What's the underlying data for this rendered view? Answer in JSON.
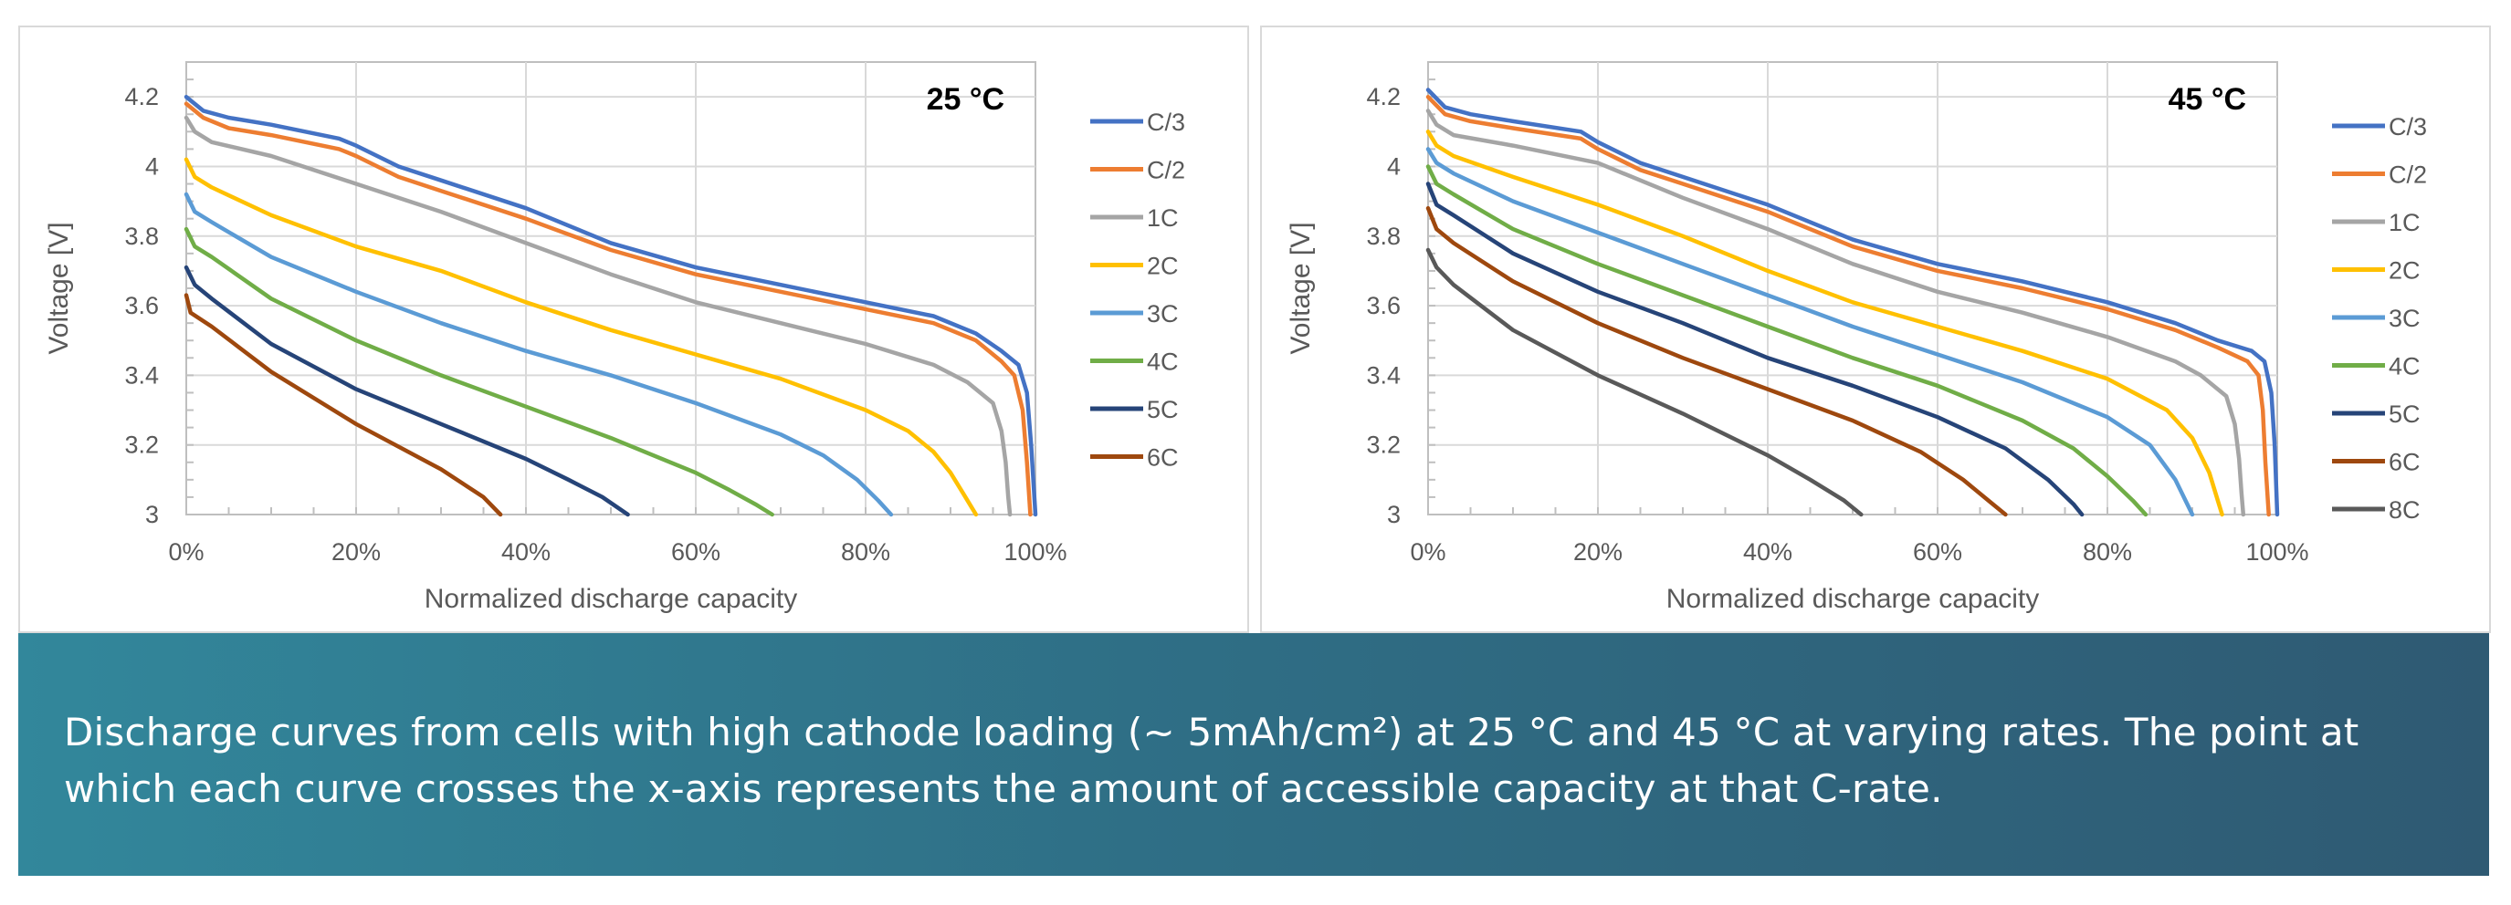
{
  "chart_data": [
    {
      "type": "line",
      "title": "25 °C",
      "xlabel": "Normalized discharge capacity",
      "ylabel": "Voltage [V]",
      "xlim": [
        0,
        100
      ],
      "ylim": [
        3,
        4.3
      ],
      "x_tick_labels": [
        "0%",
        "20%",
        "40%",
        "60%",
        "80%",
        "100%"
      ],
      "x_ticks": [
        0,
        20,
        40,
        60,
        80,
        100
      ],
      "y_tick_labels": [
        "3",
        "3.2",
        "3.4",
        "3.6",
        "3.8",
        "4",
        "4.2"
      ],
      "y_ticks": [
        3,
        3.2,
        3.4,
        3.6,
        3.8,
        4,
        4.2
      ],
      "grid": true,
      "legend_position": "right",
      "series": [
        {
          "name": "C/3",
          "color": "#4472c4",
          "x": [
            0,
            2,
            5,
            10,
            18,
            20,
            25,
            30,
            40,
            50,
            60,
            70,
            80,
            88,
            93,
            96,
            98,
            99,
            99.5,
            100
          ],
          "y": [
            4.2,
            4.16,
            4.14,
            4.12,
            4.08,
            4.06,
            4.0,
            3.96,
            3.88,
            3.78,
            3.71,
            3.66,
            3.61,
            3.57,
            3.52,
            3.47,
            3.43,
            3.35,
            3.2,
            3.0
          ]
        },
        {
          "name": "C/2",
          "color": "#ed7d31",
          "x": [
            0,
            2,
            5,
            10,
            18,
            20,
            25,
            30,
            40,
            50,
            60,
            70,
            80,
            88,
            93,
            96,
            97.5,
            98.5,
            99,
            99.4
          ],
          "y": [
            4.18,
            4.14,
            4.11,
            4.09,
            4.05,
            4.03,
            3.97,
            3.93,
            3.85,
            3.76,
            3.69,
            3.64,
            3.59,
            3.55,
            3.5,
            3.44,
            3.4,
            3.3,
            3.15,
            3.0
          ]
        },
        {
          "name": "1C",
          "color": "#a5a5a5",
          "x": [
            0,
            1,
            3,
            10,
            20,
            30,
            40,
            50,
            60,
            70,
            80,
            88,
            92,
            95,
            96,
            96.5,
            96.8,
            97
          ],
          "y": [
            4.14,
            4.1,
            4.07,
            4.03,
            3.95,
            3.87,
            3.78,
            3.69,
            3.61,
            3.55,
            3.49,
            3.43,
            3.38,
            3.32,
            3.24,
            3.15,
            3.05,
            3.0
          ]
        },
        {
          "name": "2C",
          "color": "#ffc000",
          "x": [
            0,
            1,
            3,
            10,
            20,
            30,
            40,
            50,
            60,
            70,
            80,
            85,
            88,
            90,
            91.5,
            92.5,
            93
          ],
          "y": [
            4.02,
            3.97,
            3.94,
            3.86,
            3.77,
            3.7,
            3.61,
            3.53,
            3.46,
            3.39,
            3.3,
            3.24,
            3.18,
            3.12,
            3.06,
            3.02,
            3.0
          ]
        },
        {
          "name": "3C",
          "color": "#5b9bd5",
          "x": [
            0,
            1,
            3,
            10,
            20,
            30,
            40,
            50,
            60,
            70,
            75,
            79,
            81.5,
            83
          ],
          "y": [
            3.92,
            3.87,
            3.84,
            3.74,
            3.64,
            3.55,
            3.47,
            3.4,
            3.32,
            3.23,
            3.17,
            3.1,
            3.04,
            3.0
          ]
        },
        {
          "name": "4C",
          "color": "#70ad47",
          "x": [
            0,
            1,
            3,
            10,
            20,
            30,
            40,
            50,
            60,
            64,
            67,
            69
          ],
          "y": [
            3.82,
            3.77,
            3.74,
            3.62,
            3.5,
            3.4,
            3.31,
            3.22,
            3.12,
            3.07,
            3.03,
            3.0
          ]
        },
        {
          "name": "5C",
          "color": "#264478",
          "x": [
            0,
            1,
            3,
            10,
            20,
            30,
            40,
            45,
            49,
            52
          ],
          "y": [
            3.71,
            3.66,
            3.62,
            3.49,
            3.36,
            3.26,
            3.16,
            3.1,
            3.05,
            3.0
          ]
        },
        {
          "name": "6C",
          "color": "#9e480e",
          "x": [
            0,
            0.5,
            3,
            10,
            20,
            30,
            35,
            37
          ],
          "y": [
            3.63,
            3.58,
            3.54,
            3.41,
            3.26,
            3.13,
            3.05,
            3.0
          ]
        }
      ]
    },
    {
      "type": "line",
      "title": "45 °C",
      "xlabel": "Normalized discharge capacity",
      "ylabel": "Voltage [V]",
      "xlim": [
        0,
        100
      ],
      "ylim": [
        3,
        4.3
      ],
      "x_tick_labels": [
        "0%",
        "20%",
        "40%",
        "60%",
        "80%",
        "100%"
      ],
      "x_ticks": [
        0,
        20,
        40,
        60,
        80,
        100
      ],
      "y_tick_labels": [
        "3",
        "3.2",
        "3.4",
        "3.6",
        "3.8",
        "4",
        "4.2"
      ],
      "y_ticks": [
        3,
        3.2,
        3.4,
        3.6,
        3.8,
        4,
        4.2
      ],
      "grid": true,
      "legend_position": "right",
      "series": [
        {
          "name": "C/3",
          "color": "#4472c4",
          "x": [
            0,
            2,
            5,
            10,
            18,
            20,
            25,
            30,
            40,
            50,
            60,
            70,
            80,
            88,
            93,
            97,
            98.5,
            99.3,
            99.7,
            100
          ],
          "y": [
            4.22,
            4.17,
            4.15,
            4.13,
            4.1,
            4.07,
            4.01,
            3.97,
            3.89,
            3.79,
            3.72,
            3.67,
            3.61,
            3.55,
            3.5,
            3.47,
            3.44,
            3.35,
            3.2,
            3.0
          ]
        },
        {
          "name": "C/2",
          "color": "#ed7d31",
          "x": [
            0,
            2,
            5,
            10,
            18,
            20,
            25,
            30,
            40,
            50,
            60,
            70,
            80,
            88,
            93,
            96.5,
            97.8,
            98.3,
            98.6,
            99
          ],
          "y": [
            4.2,
            4.15,
            4.13,
            4.11,
            4.08,
            4.05,
            3.99,
            3.95,
            3.87,
            3.77,
            3.7,
            3.65,
            3.59,
            3.53,
            3.48,
            3.44,
            3.4,
            3.3,
            3.15,
            3.0
          ]
        },
        {
          "name": "1C",
          "color": "#a5a5a5",
          "x": [
            0,
            1,
            3,
            10,
            20,
            30,
            40,
            50,
            60,
            70,
            80,
            88,
            91,
            94,
            95,
            95.5,
            95.8,
            96
          ],
          "y": [
            4.16,
            4.12,
            4.09,
            4.06,
            4.01,
            3.91,
            3.82,
            3.72,
            3.64,
            3.58,
            3.51,
            3.44,
            3.4,
            3.34,
            3.26,
            3.16,
            3.06,
            3.0
          ]
        },
        {
          "name": "2C",
          "color": "#ffc000",
          "x": [
            0,
            1,
            3,
            10,
            20,
            30,
            40,
            50,
            60,
            70,
            80,
            87,
            90,
            92,
            93,
            93.5
          ],
          "y": [
            4.1,
            4.06,
            4.03,
            3.97,
            3.89,
            3.8,
            3.7,
            3.61,
            3.54,
            3.47,
            3.39,
            3.3,
            3.22,
            3.12,
            3.04,
            3.0
          ]
        },
        {
          "name": "3C",
          "color": "#5b9bd5",
          "x": [
            0,
            1,
            3,
            10,
            20,
            30,
            40,
            50,
            60,
            70,
            80,
            85,
            88,
            90
          ],
          "y": [
            4.05,
            4.01,
            3.98,
            3.9,
            3.81,
            3.72,
            3.63,
            3.54,
            3.46,
            3.38,
            3.28,
            3.2,
            3.1,
            3.0
          ]
        },
        {
          "name": "4C",
          "color": "#70ad47",
          "x": [
            0,
            1,
            3,
            10,
            20,
            30,
            40,
            50,
            60,
            70,
            76,
            80,
            83,
            84.5
          ],
          "y": [
            4.0,
            3.95,
            3.92,
            3.82,
            3.72,
            3.63,
            3.54,
            3.45,
            3.37,
            3.27,
            3.19,
            3.11,
            3.04,
            3.0
          ]
        },
        {
          "name": "5C",
          "color": "#264478",
          "x": [
            0,
            1,
            3,
            10,
            20,
            30,
            40,
            50,
            60,
            68,
            73,
            76,
            77
          ],
          "y": [
            3.95,
            3.89,
            3.86,
            3.75,
            3.64,
            3.55,
            3.45,
            3.37,
            3.28,
            3.19,
            3.1,
            3.03,
            3.0
          ]
        },
        {
          "name": "6C",
          "color": "#9e480e",
          "x": [
            0,
            1,
            3,
            10,
            20,
            30,
            40,
            50,
            58,
            63,
            66,
            68
          ],
          "y": [
            3.88,
            3.82,
            3.78,
            3.67,
            3.55,
            3.45,
            3.36,
            3.27,
            3.18,
            3.1,
            3.04,
            3.0
          ]
        },
        {
          "name": "8C",
          "color": "#595959",
          "x": [
            0,
            1,
            3,
            10,
            20,
            30,
            40,
            45,
            49,
            51
          ],
          "y": [
            3.76,
            3.71,
            3.66,
            3.53,
            3.4,
            3.29,
            3.17,
            3.1,
            3.04,
            3.0
          ]
        }
      ]
    }
  ],
  "caption": {
    "line1": "Discharge curves from cells with high cathode loading (~ 5mAh/cm²) at 25 °C and 45 °C at varying rates. The point at",
    "line2": "which each curve crosses the x-axis represents the amount of accessible capacity at that C-rate."
  }
}
